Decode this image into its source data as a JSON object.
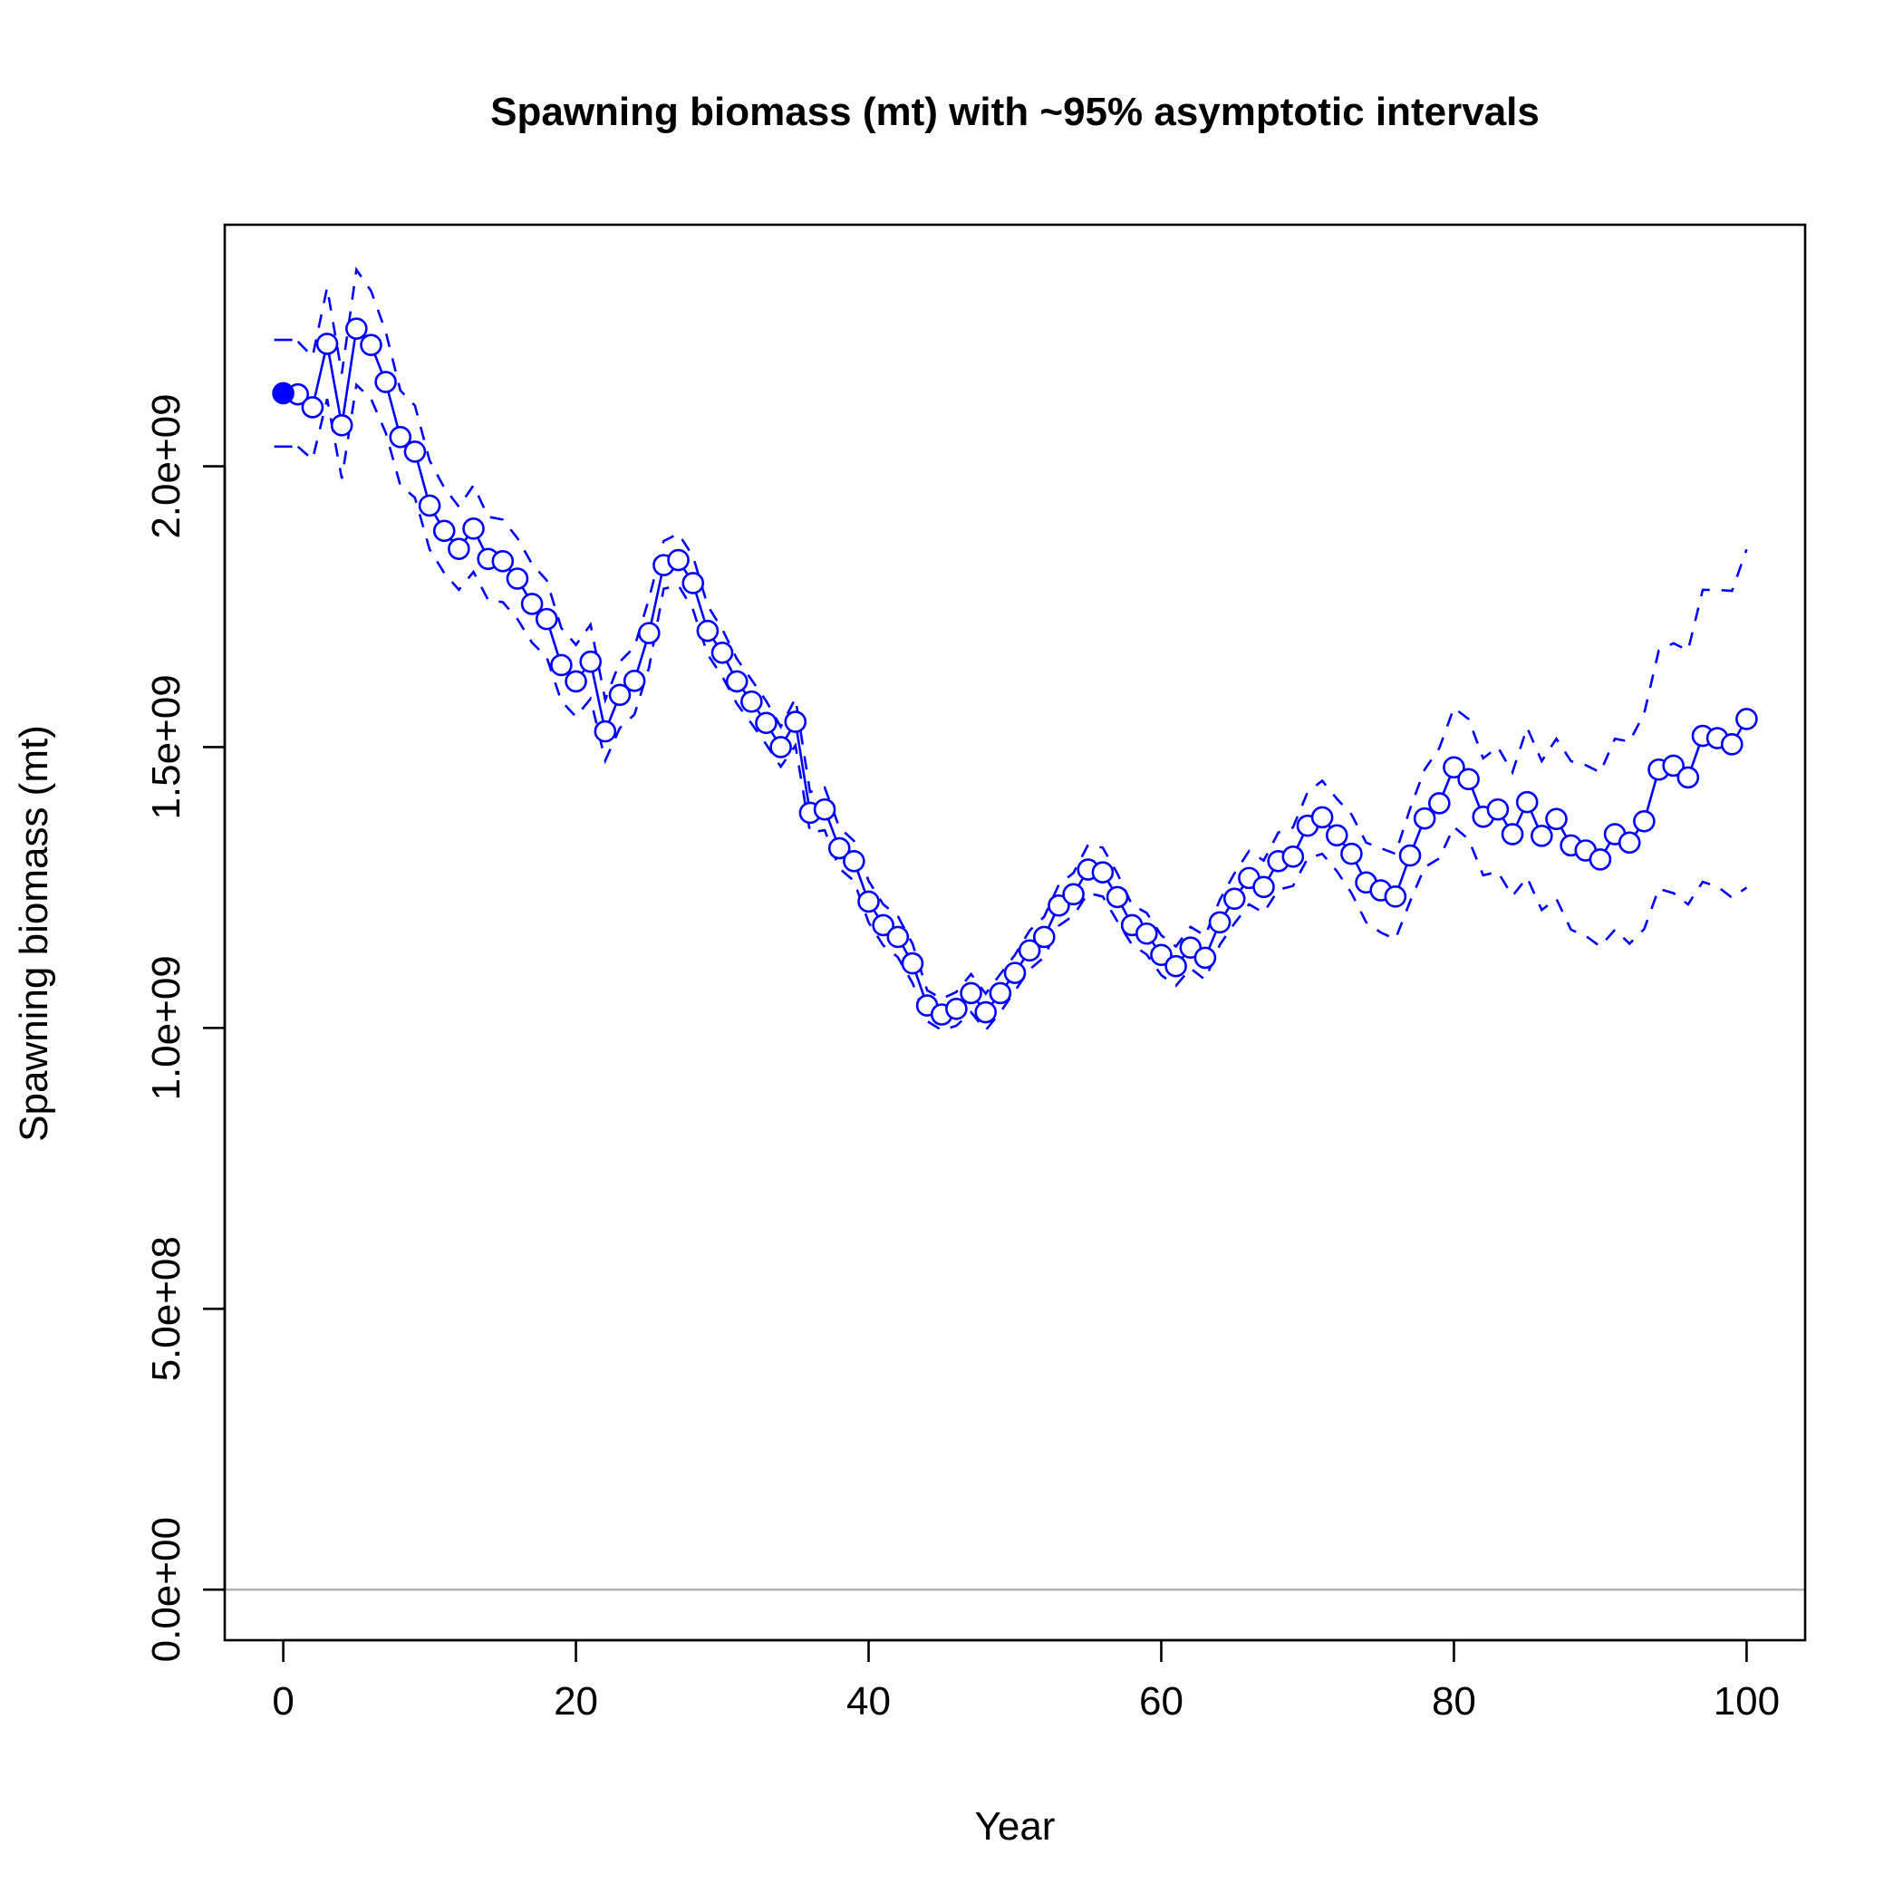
{
  "chart_data": {
    "type": "line",
    "title": "Spawning biomass (mt) with ~95% asymptotic intervals",
    "xlabel": "Year",
    "ylabel": "Spawning biomass (mt)",
    "xlim": [
      -4,
      104
    ],
    "ylim": [
      -90000000.0,
      2430000000.0
    ],
    "x_ticks": [
      0,
      20,
      40,
      60,
      80,
      100
    ],
    "x_tick_labels": [
      "0",
      "20",
      "40",
      "60",
      "80",
      "100"
    ],
    "y_ticks": [
      0,
      500000000,
      1000000000,
      1500000000,
      2000000000
    ],
    "y_tick_labels": [
      "0.0e+00",
      "5.0e+08",
      "1.0e+09",
      "1.5e+09",
      "2.0e+09"
    ],
    "reference_line": 0,
    "colors": {
      "series": "#0000ff",
      "reference": "#b3b3b3",
      "axis": "#000000"
    },
    "virgin": {
      "x": 0,
      "y": 2130000000,
      "lower": 2035000000,
      "upper": 2225000000
    },
    "series": {
      "x": [
        1,
        2,
        3,
        4,
        5,
        6,
        7,
        8,
        9,
        10,
        11,
        12,
        13,
        14,
        15,
        16,
        17,
        18,
        19,
        20,
        21,
        22,
        23,
        24,
        25,
        26,
        27,
        28,
        29,
        30,
        31,
        32,
        33,
        34,
        35,
        36,
        37,
        38,
        39,
        40,
        41,
        42,
        43,
        44,
        45,
        46,
        47,
        48,
        49,
        50,
        51,
        52,
        53,
        54,
        55,
        56,
        57,
        58,
        59,
        60,
        61,
        62,
        63,
        64,
        65,
        66,
        67,
        68,
        69,
        70,
        71,
        72,
        73,
        74,
        75,
        76,
        77,
        78,
        79,
        80,
        81,
        82,
        83,
        84,
        85,
        86,
        87,
        88,
        89,
        90,
        91,
        92,
        93,
        94,
        95,
        96,
        97,
        98,
        99,
        100
      ],
      "values": [
        2128000000,
        2105000000,
        2218000000,
        2073000000,
        2245000000,
        2216000000,
        2150000000,
        2052000000,
        2026000000,
        1930000000,
        1885000000,
        1853000000,
        1889000000,
        1835000000,
        1831000000,
        1800000000,
        1755000000,
        1728000000,
        1646000000,
        1617000000,
        1652000000,
        1528000000,
        1593000000,
        1618000000,
        1703000000,
        1824000000,
        1833000000,
        1792000000,
        1707000000,
        1668000000,
        1617000000,
        1581000000,
        1543000000,
        1500000000,
        1545000000,
        1383000000,
        1389000000,
        1320000000,
        1297000000,
        1225000000,
        1183000000,
        1162000000,
        1115000000,
        1040000000,
        1024000000,
        1034000000,
        1062000000,
        1028000000,
        1062000000,
        1098000000,
        1138000000,
        1162000000,
        1218000000,
        1238000000,
        1282000000,
        1277000000,
        1233000000,
        1183000000,
        1168000000,
        1130000000,
        1110000000,
        1143000000,
        1125000000,
        1188000000,
        1230000000,
        1267000000,
        1251000000,
        1297000000,
        1305000000,
        1360000000,
        1375000000,
        1343000000,
        1310000000,
        1259000000,
        1245000000,
        1234000000,
        1307000000,
        1373000000,
        1400000000,
        1464000000,
        1443000000,
        1376000000,
        1389000000,
        1345000000,
        1402000000,
        1342000000,
        1372000000,
        1325000000,
        1316000000,
        1300000000,
        1345000000,
        1330000000,
        1368000000,
        1460000000,
        1467000000,
        1446000000,
        1520000000,
        1516000000,
        1505000000,
        1550000000
      ],
      "upper": [
        2222000000,
        2195000000,
        2318000000,
        2165000000,
        2350000000,
        2312000000,
        2240000000,
        2135000000,
        2108000000,
        2010000000,
        1962000000,
        1928000000,
        1966000000,
        1910000000,
        1905000000,
        1872000000,
        1826000000,
        1797000000,
        1712000000,
        1682000000,
        1718000000,
        1584000000,
        1652000000,
        1678000000,
        1765000000,
        1867000000,
        1880000000,
        1840000000,
        1752000000,
        1710000000,
        1657000000,
        1620000000,
        1582000000,
        1536000000,
        1587000000,
        1420000000,
        1428000000,
        1357000000,
        1333000000,
        1262000000,
        1220000000,
        1199000000,
        1150000000,
        1067000000,
        1052000000,
        1064000000,
        1096000000,
        1061000000,
        1096000000,
        1130000000,
        1173000000,
        1198000000,
        1255000000,
        1276000000,
        1326000000,
        1321000000,
        1275000000,
        1219000000,
        1205000000,
        1165000000,
        1145000000,
        1180000000,
        1164000000,
        1228000000,
        1275000000,
        1315000000,
        1298000000,
        1348000000,
        1357000000,
        1420000000,
        1440000000,
        1408000000,
        1380000000,
        1330000000,
        1320000000,
        1310000000,
        1390000000,
        1460000000,
        1498000000,
        1570000000,
        1550000000,
        1480000000,
        1500000000,
        1455000000,
        1535000000,
        1475000000,
        1515000000,
        1475000000,
        1468000000,
        1455000000,
        1515000000,
        1510000000,
        1560000000,
        1672000000,
        1685000000,
        1672000000,
        1780000000,
        1780000000,
        1778000000,
        1852000000
      ],
      "lower": [
        2035000000,
        2012000000,
        2120000000,
        1978000000,
        2145000000,
        2120000000,
        2060000000,
        1966000000,
        1944000000,
        1852000000,
        1810000000,
        1780000000,
        1812000000,
        1762000000,
        1758000000,
        1728000000,
        1686000000,
        1660000000,
        1582000000,
        1554000000,
        1586000000,
        1476000000,
        1534000000,
        1558000000,
        1642000000,
        1782000000,
        1788000000,
        1745000000,
        1665000000,
        1626000000,
        1577000000,
        1542000000,
        1505000000,
        1465000000,
        1503000000,
        1348000000,
        1352000000,
        1284000000,
        1262000000,
        1188000000,
        1147000000,
        1126000000,
        1080000000,
        1012000000,
        996000000,
        1004000000,
        1028000000,
        996000000,
        1028000000,
        1066000000,
        1104000000,
        1126000000,
        1182000000,
        1200000000,
        1240000000,
        1234000000,
        1190000000,
        1148000000,
        1131000000,
        1094000000,
        1075000000,
        1106000000,
        1086000000,
        1148000000,
        1186000000,
        1220000000,
        1205000000,
        1246000000,
        1253000000,
        1302000000,
        1310000000,
        1279000000,
        1240000000,
        1188000000,
        1170000000,
        1158000000,
        1225000000,
        1286000000,
        1302000000,
        1358000000,
        1336000000,
        1272000000,
        1278000000,
        1235000000,
        1268000000,
        1210000000,
        1230000000,
        1175000000,
        1164000000,
        1145000000,
        1175000000,
        1150000000,
        1176000000,
        1248000000,
        1240000000,
        1220000000,
        1260000000,
        1252000000,
        1232000000,
        1250000000
      ]
    }
  }
}
